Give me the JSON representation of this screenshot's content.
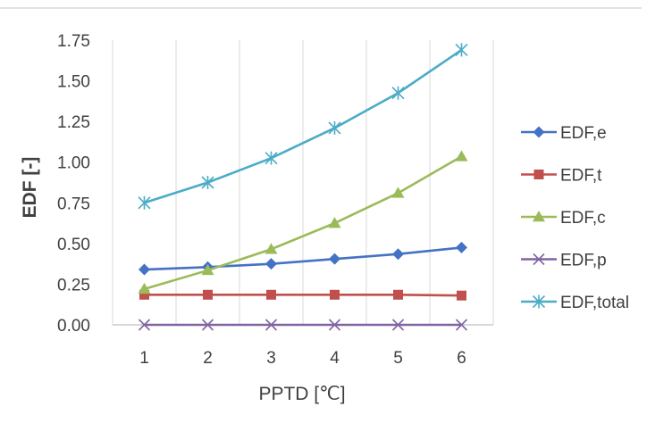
{
  "chart_data": {
    "type": "line",
    "title": "",
    "xlabel": "PPTD [℃]",
    "ylabel": "EDF [-]",
    "x": [
      1,
      2,
      3,
      4,
      5,
      6
    ],
    "xlim": [
      0.5,
      6.5
    ],
    "ylim": [
      0,
      1.75
    ],
    "yticks": [
      "0.00",
      "0.25",
      "0.50",
      "0.75",
      "1.00",
      "1.25",
      "1.50",
      "1.75"
    ],
    "xticks": [
      "1",
      "2",
      "3",
      "4",
      "5",
      "6"
    ],
    "grid": "vertical",
    "legend_position": "right",
    "series": [
      {
        "name": "EDF,e",
        "color": "#4472C4",
        "marker": "diamond",
        "values": [
          0.34,
          0.355,
          0.375,
          0.405,
          0.435,
          0.475
        ]
      },
      {
        "name": "EDF,t",
        "color": "#C0504D",
        "marker": "square",
        "values": [
          0.185,
          0.185,
          0.185,
          0.185,
          0.185,
          0.18
        ]
      },
      {
        "name": "EDF,c",
        "color": "#9BBB59",
        "marker": "triangle",
        "values": [
          0.22,
          0.335,
          0.465,
          0.625,
          0.81,
          1.035
        ]
      },
      {
        "name": "EDF,p",
        "color": "#8064A2",
        "marker": "x",
        "values": [
          0.0,
          0.0,
          0.0,
          0.0,
          0.0,
          0.0
        ]
      },
      {
        "name": "EDF,total",
        "color": "#4BACC6",
        "marker": "star",
        "values": [
          0.75,
          0.875,
          1.025,
          1.21,
          1.425,
          1.69
        ]
      }
    ]
  }
}
